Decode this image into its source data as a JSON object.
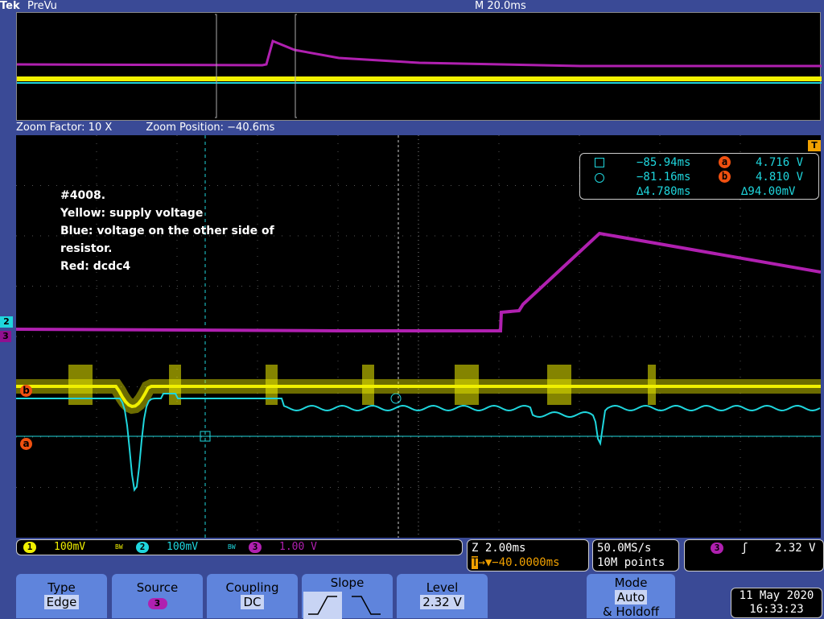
{
  "header": {
    "brand": "Tek",
    "mode": "PreVu",
    "timebase": "M 20.0ms"
  },
  "zoom": {
    "factor": "Zoom Factor: 10 X",
    "position": "Zoom Position: −40.6ms"
  },
  "annotation": [
    "#4008.",
    "Yellow: supply voltage",
    "Blue: voltage on the other side of",
    "resistor.",
    "Red: dcdc4"
  ],
  "cursors": {
    "t1": "−85.94ms",
    "t2": "−81.16ms",
    "dt": "∆4.780ms",
    "a_label": "a",
    "b_label": "b",
    "va": "4.716 V",
    "vb": "4.810 V",
    "dv": "∆94.00mV"
  },
  "channels": [
    {
      "num": "1",
      "scale": "100mV",
      "color": "#f0f000",
      "bw": "BW"
    },
    {
      "num": "2",
      "scale": "100mV",
      "color": "#1fd6dd",
      "bw": "BW"
    },
    {
      "num": "3",
      "scale": "1.00 V",
      "color": "#b020b0"
    }
  ],
  "horizontal": {
    "zoom_scale": "Z 2.00ms",
    "delay": "−40.0000ms",
    "rate": "50.0MS/s",
    "points": "10M points"
  },
  "trigger": {
    "source": "3",
    "slope_icon": "rising-edge",
    "level": "2.32 V"
  },
  "menu": {
    "type_label": "Type",
    "type_value": "Edge",
    "source_label": "Source",
    "source_value": "3",
    "coupling_label": "Coupling",
    "coupling_value": "DC",
    "slope_label": "Slope",
    "level_label": "Level",
    "level_value": "2.32 V",
    "mode_label": "Mode",
    "mode_value": "Auto",
    "mode_suffix": "& Holdoff"
  },
  "datetime": {
    "date": "11 May 2020",
    "time": "16:33:23"
  },
  "markers": {
    "trigger": "T",
    "ch2": "2",
    "ch3": "3",
    "ref_a": "a",
    "ref_b": "b"
  }
}
